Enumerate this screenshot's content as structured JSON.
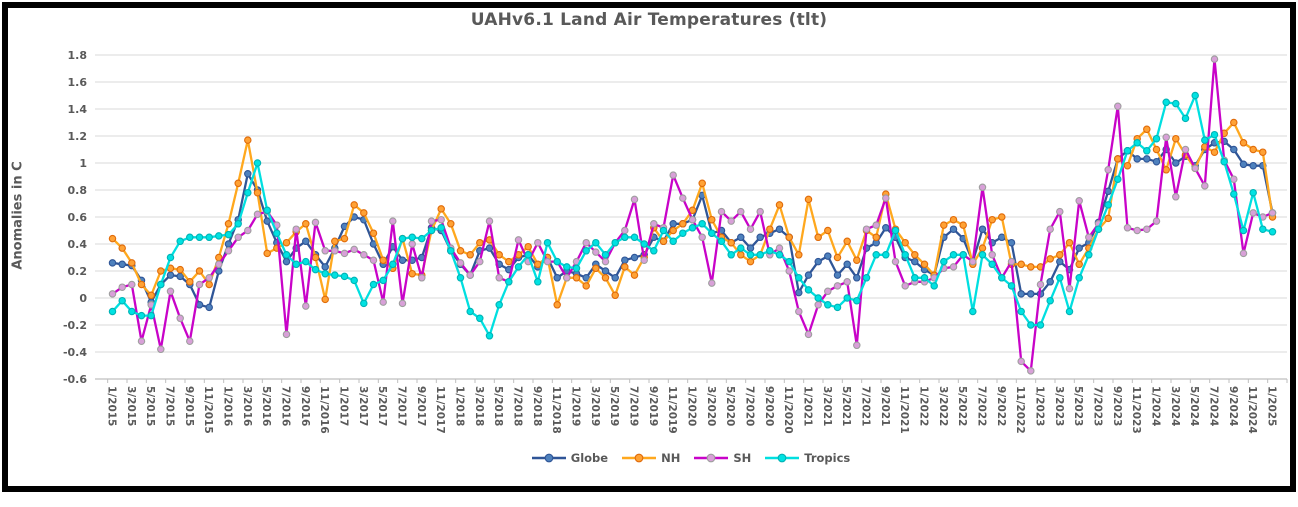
{
  "title": "UAHv6.1 Land Air Temperatures (tlt)",
  "y_axis_title": "Anomalies in C",
  "colors": {
    "title_text": "#595959",
    "axis_text": "#595959",
    "gridline": "#D9D9D9",
    "axis_line": "#BFBFBF",
    "frame": "#000000",
    "background": "#FFFFFF"
  },
  "chart_data": {
    "type": "line",
    "title": "UAHv6.1 Land Air Temperatures (tlt)",
    "xlabel": "",
    "ylabel": "Anomalies in C",
    "ylim": [
      -0.6,
      1.8
    ],
    "y_ticks": [
      1.8,
      1.6,
      1.4,
      1.2,
      1,
      0.8,
      0.6,
      0.4,
      0.2,
      0,
      -0.2,
      -0.4,
      -0.6
    ],
    "grid": true,
    "legend_position": "bottom",
    "months_per_label": 2,
    "x_labels": [
      "1/2015",
      "3/2015",
      "5/2015",
      "7/2015",
      "9/2015",
      "11/2015",
      "1/2016",
      "3/2016",
      "5/2016",
      "7/2016",
      "9/2016",
      "11/2016",
      "1/2017",
      "3/2017",
      "5/2017",
      "7/2017",
      "9/2017",
      "11/2017",
      "1/2018",
      "3/2018",
      "5/2018",
      "7/2018",
      "9/2018",
      "11/2018",
      "1/2019",
      "3/2019",
      "5/2019",
      "7/2019",
      "9/2019",
      "11/2019",
      "1/2020",
      "3/2020",
      "5/2020",
      "7/2020",
      "9/2020",
      "11/2020",
      "1/2021",
      "3/2021",
      "5/2021",
      "7/2021",
      "9/2021",
      "11/2021",
      "1/2022",
      "3/2022",
      "5/2022",
      "7/2022",
      "9/2022",
      "11/2022",
      "1/2023",
      "3/2023",
      "5/2023",
      "7/2023",
      "9/2023",
      "11/2023",
      "1/2024",
      "3/2024",
      "5/2024",
      "7/2024",
      "9/2024",
      "11/2024",
      "1/2025"
    ],
    "series": [
      {
        "name": "Globe",
        "line_color": "#2F5597",
        "marker_fill": "#4E81BD",
        "marker_edge": "#2F5597",
        "values": [
          0.26,
          0.25,
          0.24,
          0.13,
          -0.03,
          0.1,
          0.17,
          0.16,
          0.1,
          -0.05,
          -0.07,
          0.2,
          0.4,
          0.58,
          0.92,
          0.8,
          0.57,
          0.41,
          0.27,
          0.37,
          0.42,
          0.32,
          0.23,
          0.37,
          0.53,
          0.6,
          0.58,
          0.4,
          0.25,
          0.38,
          0.28,
          0.28,
          0.3,
          0.52,
          0.5,
          0.35,
          0.25,
          0.17,
          0.35,
          0.37,
          0.25,
          0.21,
          0.3,
          0.32,
          0.23,
          0.3,
          0.15,
          0.2,
          0.18,
          0.15,
          0.25,
          0.2,
          0.15,
          0.28,
          0.3,
          0.32,
          0.45,
          0.42,
          0.55,
          0.55,
          0.58,
          0.76,
          0.48,
          0.5,
          0.41,
          0.45,
          0.37,
          0.45,
          0.48,
          0.51,
          0.45,
          0.04,
          0.17,
          0.27,
          0.31,
          0.17,
          0.25,
          0.15,
          0.37,
          0.41,
          0.52,
          0.45,
          0.3,
          0.27,
          0.21,
          0.17,
          0.45,
          0.51,
          0.44,
          0.27,
          0.51,
          0.41,
          0.45,
          0.41,
          0.03,
          0.03,
          0.03,
          0.12,
          0.27,
          0.21,
          0.37,
          0.41,
          0.56,
          0.79,
          1.03,
          1.09,
          1.03,
          1.03,
          1.01,
          1.1,
          1.0,
          1.05,
          0.98,
          1.1,
          1.15,
          1.16,
          1.1,
          0.99,
          0.98,
          0.98,
          0.63
        ]
      },
      {
        "name": "NH",
        "line_color": "#FFA81E",
        "marker_fill": "#FFA235",
        "marker_edge": "#E06B0A",
        "values": [
          0.44,
          0.37,
          0.26,
          0.1,
          0.02,
          0.2,
          0.22,
          0.21,
          0.12,
          0.2,
          0.1,
          0.3,
          0.55,
          0.85,
          1.17,
          0.78,
          0.33,
          0.37,
          0.41,
          0.49,
          0.55,
          0.3,
          -0.01,
          0.42,
          0.44,
          0.69,
          0.63,
          0.48,
          0.28,
          0.22,
          0.44,
          0.18,
          0.17,
          0.5,
          0.66,
          0.55,
          0.35,
          0.32,
          0.41,
          0.43,
          0.32,
          0.27,
          0.32,
          0.38,
          0.25,
          0.3,
          -0.05,
          0.15,
          0.15,
          0.09,
          0.22,
          0.15,
          0.02,
          0.23,
          0.17,
          0.3,
          0.52,
          0.42,
          0.5,
          0.55,
          0.65,
          0.85,
          0.58,
          0.45,
          0.41,
          0.32,
          0.27,
          0.32,
          0.51,
          0.69,
          0.45,
          0.32,
          0.73,
          0.45,
          0.5,
          0.3,
          0.42,
          0.28,
          0.5,
          0.45,
          0.77,
          0.51,
          0.41,
          0.32,
          0.25,
          0.17,
          0.54,
          0.58,
          0.54,
          0.25,
          0.37,
          0.58,
          0.6,
          0.25,
          0.25,
          0.23,
          0.23,
          0.29,
          0.32,
          0.41,
          0.25,
          0.37,
          0.51,
          0.59,
          1.03,
          0.98,
          1.18,
          1.25,
          1.1,
          0.95,
          1.18,
          1.06,
          0.96,
          1.12,
          1.08,
          1.22,
          1.3,
          1.15,
          1.1,
          1.08,
          0.6
        ]
      },
      {
        "name": "SH",
        "line_color": "#C803C8",
        "marker_fill": "#D8A0D8",
        "marker_edge": "#9E9E9E",
        "values": [
          0.03,
          0.08,
          0.1,
          -0.32,
          -0.05,
          -0.38,
          0.05,
          -0.15,
          -0.32,
          0.1,
          0.15,
          0.25,
          0.35,
          0.45,
          0.5,
          0.62,
          0.64,
          0.54,
          -0.27,
          0.51,
          -0.06,
          0.56,
          0.35,
          0.35,
          0.33,
          0.36,
          0.32,
          0.28,
          -0.03,
          0.57,
          -0.04,
          0.4,
          0.15,
          0.57,
          0.58,
          0.37,
          0.26,
          0.17,
          0.27,
          0.57,
          0.15,
          0.12,
          0.43,
          0.27,
          0.41,
          0.27,
          0.27,
          0.15,
          0.27,
          0.41,
          0.34,
          0.27,
          0.41,
          0.5,
          0.73,
          0.28,
          0.55,
          0.52,
          0.91,
          0.74,
          0.58,
          0.45,
          0.11,
          0.64,
          0.57,
          0.64,
          0.51,
          0.64,
          0.32,
          0.37,
          0.2,
          -0.1,
          -0.27,
          -0.05,
          0.05,
          0.09,
          0.12,
          -0.35,
          0.51,
          0.54,
          0.74,
          0.27,
          0.09,
          0.12,
          0.12,
          0.15,
          0.22,
          0.23,
          0.32,
          0.27,
          0.82,
          0.32,
          0.15,
          0.27,
          -0.47,
          -0.54,
          0.1,
          0.51,
          0.64,
          0.07,
          0.72,
          0.45,
          0.55,
          0.95,
          1.42,
          0.52,
          0.5,
          0.51,
          0.57,
          1.19,
          0.75,
          1.1,
          0.96,
          0.83,
          1.77,
          1.02,
          0.88,
          0.33,
          0.63,
          0.6,
          0.63
        ]
      },
      {
        "name": "Tropics",
        "line_color": "#00DFE0",
        "marker_fill": "#00E2E2",
        "marker_edge": "#00B3B5",
        "values": [
          -0.1,
          -0.02,
          -0.1,
          -0.13,
          -0.13,
          0.1,
          0.3,
          0.42,
          0.45,
          0.45,
          0.45,
          0.46,
          0.47,
          0.55,
          0.78,
          1.0,
          0.65,
          0.48,
          0.32,
          0.25,
          0.27,
          0.21,
          0.18,
          0.17,
          0.16,
          0.13,
          -0.04,
          0.1,
          0.13,
          0.25,
          0.44,
          0.45,
          0.44,
          0.5,
          0.52,
          0.35,
          0.15,
          -0.1,
          -0.15,
          -0.28,
          -0.05,
          0.12,
          0.23,
          0.32,
          0.12,
          0.41,
          0.27,
          0.23,
          0.22,
          0.35,
          0.41,
          0.32,
          0.41,
          0.45,
          0.45,
          0.4,
          0.35,
          0.5,
          0.42,
          0.48,
          0.52,
          0.55,
          0.48,
          0.42,
          0.32,
          0.37,
          0.32,
          0.32,
          0.35,
          0.32,
          0.27,
          0.15,
          0.06,
          0.0,
          -0.05,
          -0.07,
          0.0,
          -0.02,
          0.15,
          0.32,
          0.32,
          0.5,
          0.32,
          0.15,
          0.15,
          0.09,
          0.27,
          0.32,
          0.32,
          -0.1,
          0.32,
          0.25,
          0.15,
          0.09,
          -0.1,
          -0.2,
          -0.2,
          -0.02,
          0.15,
          -0.1,
          0.15,
          0.32,
          0.51,
          0.69,
          0.88,
          1.09,
          1.15,
          1.09,
          1.18,
          1.45,
          1.44,
          1.33,
          1.5,
          1.17,
          1.21,
          1.01,
          0.77,
          0.5,
          0.78,
          0.51,
          0.49
        ]
      }
    ]
  }
}
